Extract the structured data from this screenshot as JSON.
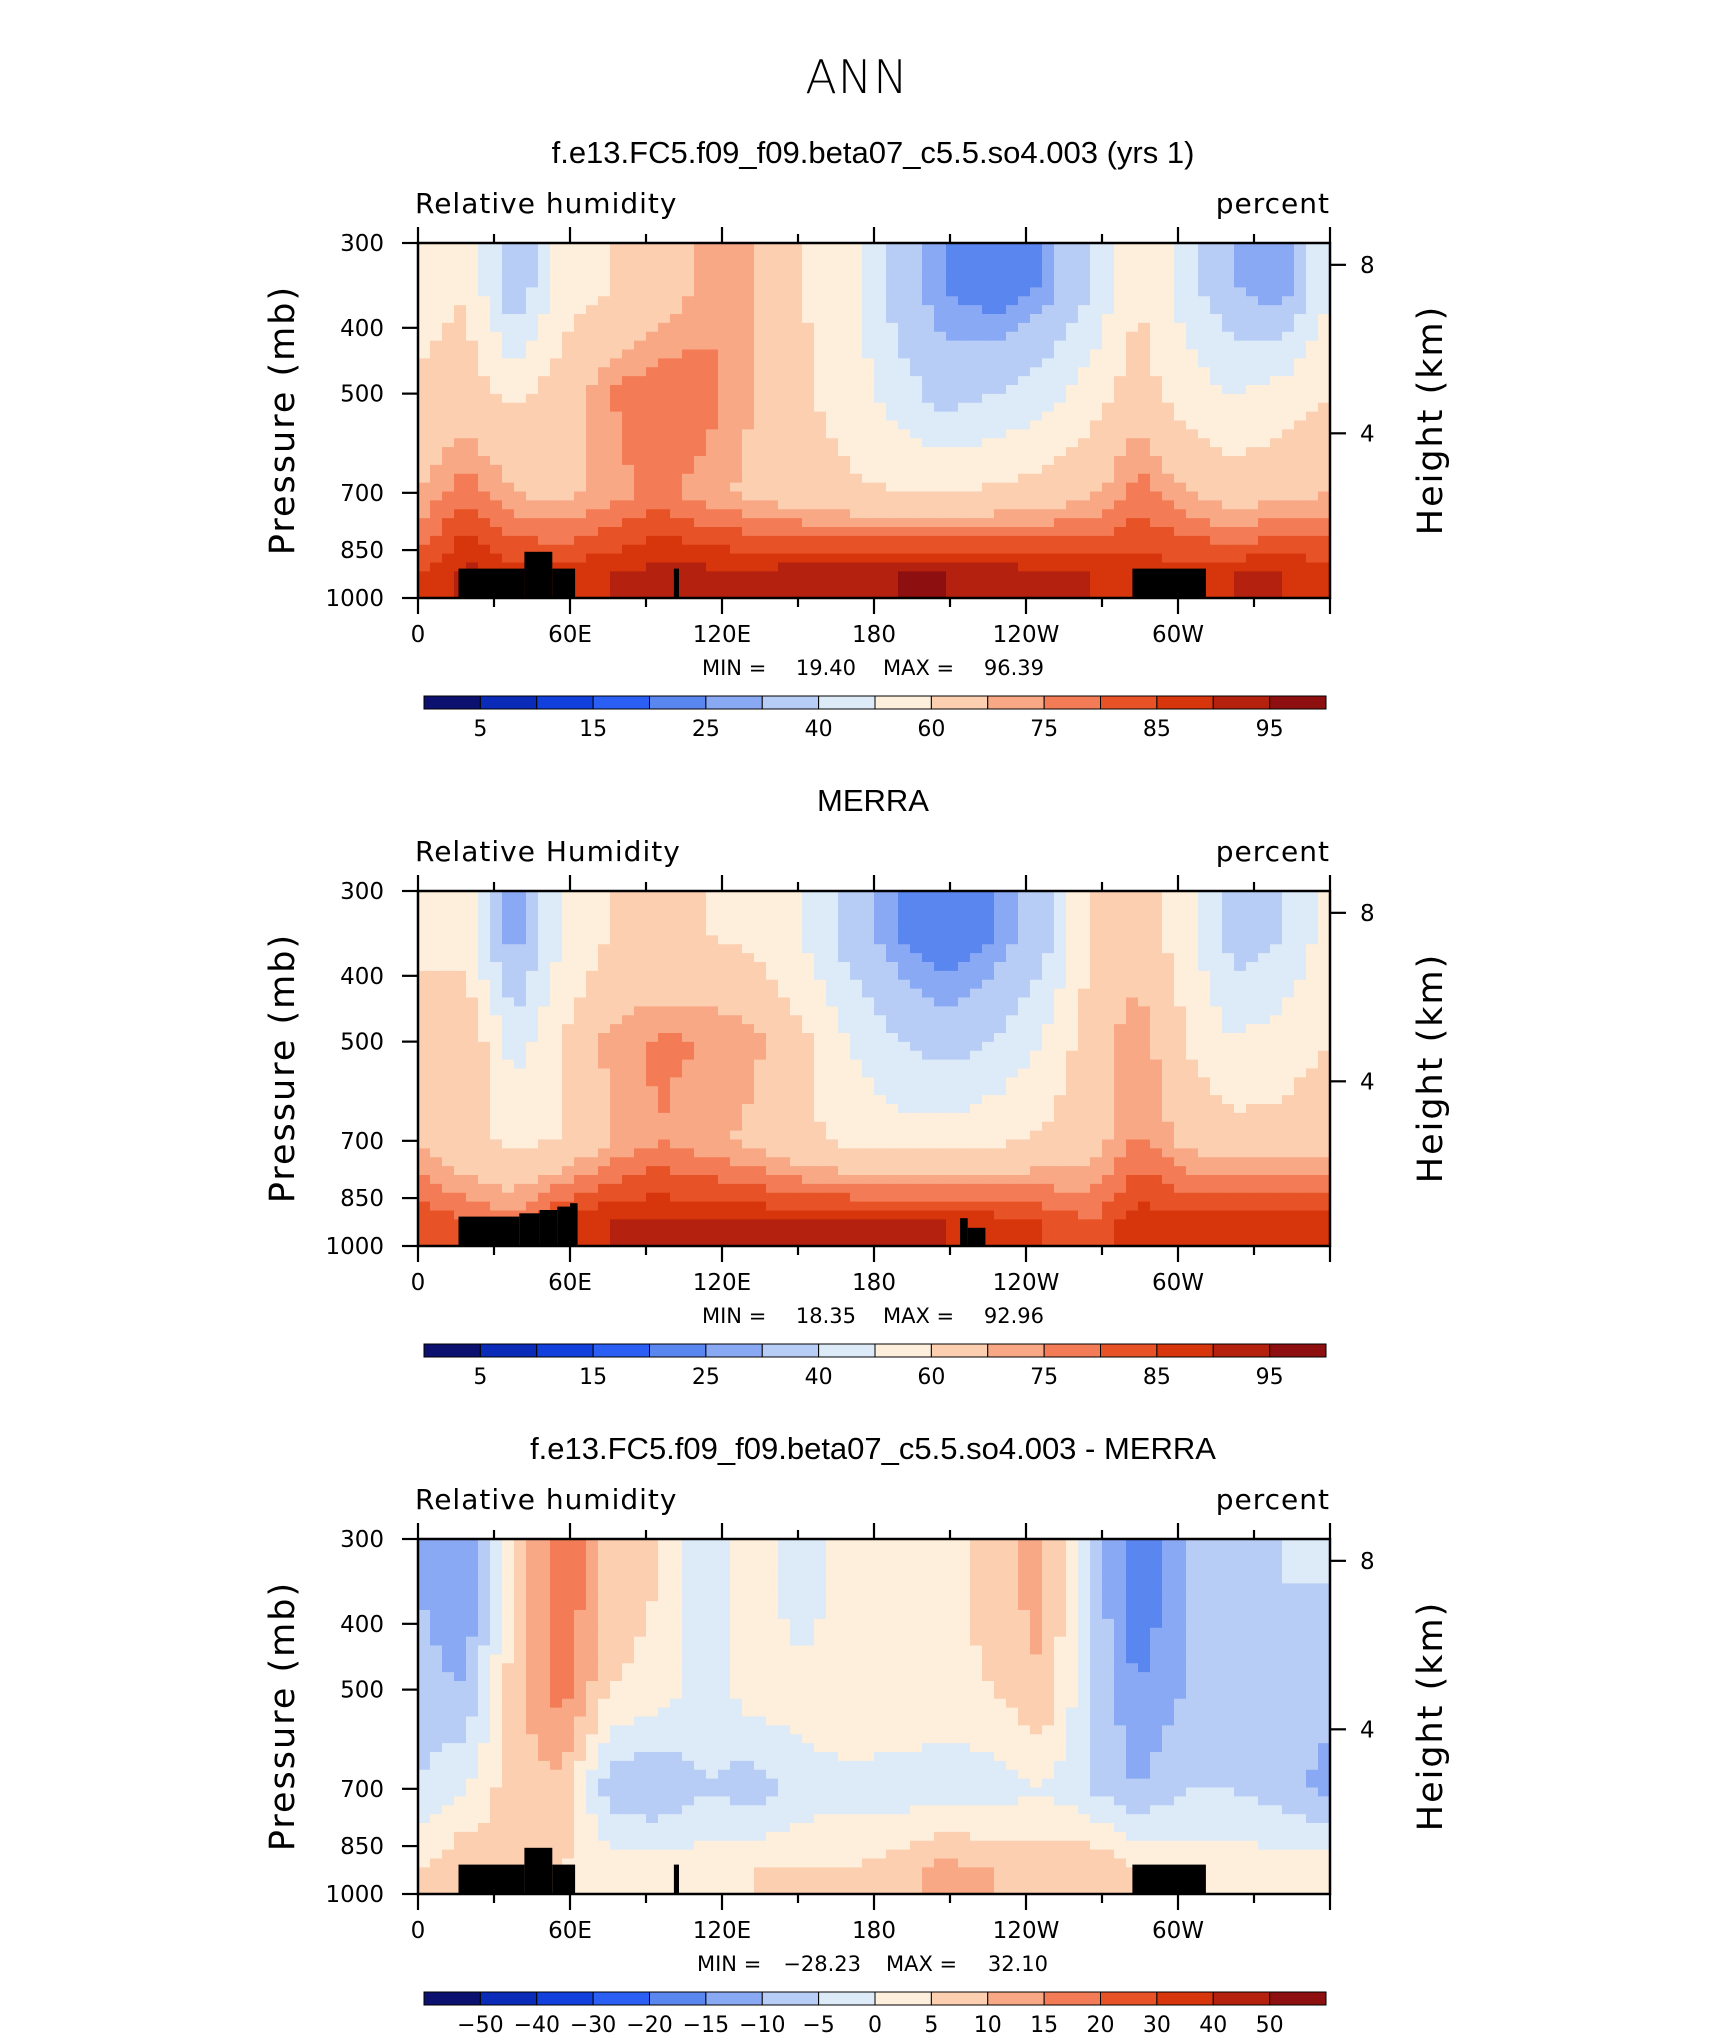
{
  "figure_title": "ANN",
  "chart_data": [
    {
      "type": "heatmap",
      "title": "f.e13.FC5.f09_f09.beta07_c5.5.so4.003 (yrs 1)",
      "left_label": "Relative  humidity",
      "right_label": "percent",
      "ylabel": "Pressure  (mb)",
      "y2label": "Height  (km)",
      "x_ticks": [
        "0",
        "60E",
        "120E",
        "180",
        "120W",
        "60W"
      ],
      "y_ticks": [
        "300",
        "400",
        "500",
        "700",
        "850",
        "1000"
      ],
      "y2_ticks": [
        "8",
        "4"
      ],
      "min_label": "MIN =",
      "min": "19.40",
      "max_label": "MAX =",
      "max": "96.39",
      "colorbar_labels": [
        "5",
        "15",
        "25",
        "40",
        "60",
        "75",
        "85",
        "95"
      ],
      "field": [
        [
          55,
          60,
          30,
          55,
          60,
          65,
          72,
          70,
          60,
          55,
          35,
          25,
          20,
          25,
          40,
          60,
          45,
          30,
          25,
          50
        ],
        [
          62,
          65,
          58,
          65,
          75,
          80,
          78,
          70,
          62,
          55,
          45,
          35,
          40,
          45,
          55,
          65,
          55,
          50,
          55,
          60
        ],
        [
          70,
          78,
          70,
          68,
          72,
          78,
          72,
          68,
          65,
          62,
          60,
          60,
          62,
          65,
          68,
          78,
          70,
          65,
          68,
          70
        ],
        [
          85,
          92,
          88,
          88,
          90,
          92,
          92,
          92,
          93,
          94,
          95,
          95,
          94,
          92,
          90,
          88,
          88,
          90,
          90,
          88
        ]
      ]
    },
    {
      "type": "heatmap",
      "title": "MERRA",
      "left_label": "Relative  Humidity",
      "right_label": "percent",
      "ylabel": "Pressure  (mb)",
      "y2label": "Height  (km)",
      "x_ticks": [
        "0",
        "60E",
        "120E",
        "180",
        "120W",
        "60W"
      ],
      "y_ticks": [
        "300",
        "400",
        "500",
        "700",
        "850",
        "1000"
      ],
      "y2_ticks": [
        "8",
        "4"
      ],
      "min_label": "MIN =",
      "min": "18.35",
      "max_label": "MAX =",
      "max": "92.96",
      "colorbar_labels": [
        "5",
        "15",
        "25",
        "40",
        "60",
        "75",
        "85",
        "95"
      ],
      "field": [
        [
          58,
          55,
          25,
          50,
          60,
          60,
          60,
          58,
          50,
          35,
          25,
          20,
          25,
          35,
          60,
          65,
          55,
          35,
          40,
          55
        ],
        [
          65,
          70,
          45,
          60,
          72,
          76,
          75,
          72,
          62,
          50,
          40,
          35,
          40,
          50,
          65,
          75,
          60,
          50,
          55,
          60
        ],
        [
          70,
          62,
          58,
          60,
          70,
          75,
          72,
          68,
          62,
          58,
          55,
          55,
          58,
          62,
          66,
          76,
          68,
          64,
          64,
          66
        ],
        [
          85,
          80,
          78,
          88,
          90,
          90,
          90,
          90,
          90,
          90,
          90,
          90,
          88,
          85,
          80,
          88,
          88,
          88,
          88,
          88
        ]
      ]
    },
    {
      "type": "heatmap",
      "title": "f.e13.FC5.f09_f09.beta07_c5.5.so4.003 - MERRA",
      "left_label": "Relative  humidity",
      "right_label": "percent",
      "ylabel": "Pressure  (mb)",
      "y2label": "Height  (km)",
      "x_ticks": [
        "0",
        "60E",
        "120E",
        "180",
        "120W",
        "60W"
      ],
      "y_ticks": [
        "300",
        "400",
        "500",
        "700",
        "850",
        "1000"
      ],
      "y2_ticks": [
        "8",
        "4"
      ],
      "min_label": "MIN =",
      "min": "−28.23",
      "max_label": "MAX =",
      "max": "32.10",
      "colorbar_labels": [
        "−50",
        "−40",
        "−30",
        "−20",
        "−15",
        "−10",
        "−5",
        "0",
        "5",
        "10",
        "15",
        "20",
        "30",
        "40",
        "50"
      ],
      "field": [
        [
          -10,
          -15,
          5,
          20,
          8,
          5,
          -5,
          5,
          -5,
          3,
          5,
          3,
          8,
          12,
          -5,
          -20,
          -10,
          -8,
          -5,
          -5
        ],
        [
          -8,
          -10,
          8,
          18,
          5,
          3,
          -3,
          3,
          3,
          5,
          5,
          3,
          5,
          10,
          -5,
          -15,
          -10,
          -8,
          -8,
          -8
        ],
        [
          -5,
          0,
          8,
          8,
          -8,
          -10,
          -5,
          -8,
          -3,
          -2,
          -3,
          -3,
          -3,
          0,
          -5,
          -10,
          -5,
          -5,
          -8,
          -12
        ],
        [
          5,
          10,
          5,
          5,
          3,
          3,
          3,
          5,
          5,
          5,
          8,
          12,
          10,
          8,
          10,
          5,
          3,
          3,
          3,
          3
        ]
      ]
    }
  ],
  "colors_abs": [
    "#0c1170",
    "#0a2ab8",
    "#1140dc",
    "#2b5ef2",
    "#5a86f0",
    "#8aa9f4",
    "#b7cdf6",
    "#ddeaf8",
    "#feeedc",
    "#fbcfb0",
    "#f8a885",
    "#f37c56",
    "#e85227",
    "#d7350c",
    "#b4210e",
    "#8e0f0f"
  ],
  "colors_diff": [
    "#0c1170",
    "#0a2ab8",
    "#1140dc",
    "#2b5ef2",
    "#5a86f0",
    "#8aa9f4",
    "#b7cdf6",
    "#ddeaf8",
    "#feeedc",
    "#fbcfb0",
    "#f8a885",
    "#f37c56",
    "#e85227",
    "#d7350c",
    "#b4210e",
    "#8e0f0f"
  ]
}
